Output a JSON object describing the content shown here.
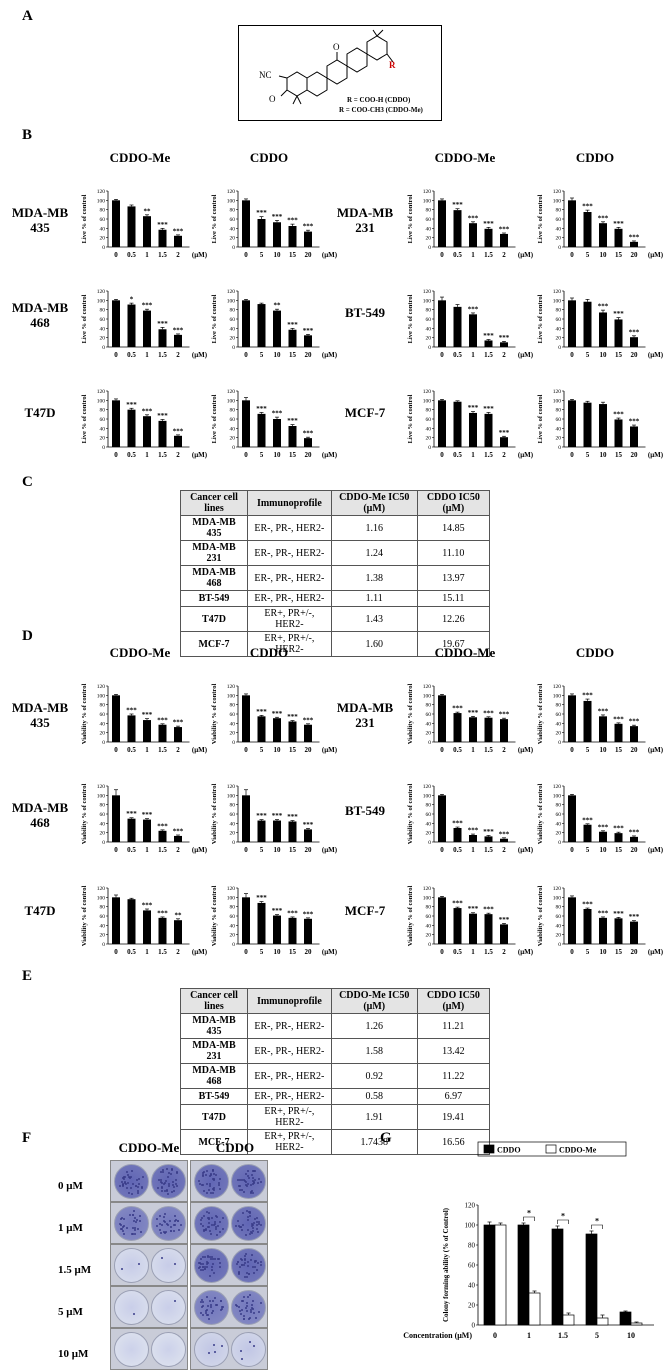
{
  "panels": {
    "A": "A",
    "B": "B",
    "C": "C",
    "D": "D",
    "E": "E",
    "F": "F",
    "G": "G"
  },
  "structure": {
    "r_group": "R",
    "line1": "R = COO-H (CDDO)",
    "line2": "R = COO-CH3 (CDDO-Me)",
    "labels": [
      "NC",
      "O",
      "O"
    ]
  },
  "panel_b": {
    "headers": [
      "CDDO-Me",
      "CDDO",
      "CDDO-Me",
      "CDDO"
    ],
    "ylabel": "Live % of control",
    "unit": "(μM)",
    "rows_left": [
      "MDA-MB 435",
      "MDA-MB 468",
      "T47D"
    ],
    "rows_right": [
      "MDA-MB 231",
      "BT-549",
      "MCF-7"
    ]
  },
  "panel_d": {
    "headers": [
      "CDDO-Me",
      "CDDO",
      "CDDO-Me",
      "CDDO"
    ],
    "ylabel": "Viability % of control",
    "unit": "(μM)",
    "rows_left": [
      "MDA-MB 435",
      "MDA-MB 468",
      "T47D"
    ],
    "rows_right": [
      "MDA-MB 231",
      "BT-549",
      "MCF-7"
    ]
  },
  "table_c": {
    "headers": [
      "Cancer  cell lines",
      "Immunoprofile",
      "CDDO-Me IC50 (μM)",
      "CDDO IC50 (μM)"
    ],
    "rows": [
      [
        "MDA-MB 435",
        "ER-, PR-, HER2-",
        "1.16",
        "14.85"
      ],
      [
        "MDA-MB 231",
        "ER-, PR-, HER2-",
        "1.24",
        "11.10"
      ],
      [
        "MDA-MB 468",
        "ER-, PR-, HER2-",
        "1.38",
        "13.97"
      ],
      [
        "BT-549",
        "ER-, PR-, HER2-",
        "1.11",
        "15.11"
      ],
      [
        "T47D",
        "ER+, PR+/-, HER2-",
        "1.43",
        "12.26"
      ],
      [
        "MCF-7",
        "ER+, PR+/-, HER2-",
        "1.60",
        "19.67"
      ]
    ]
  },
  "table_e": {
    "headers": [
      "Cancer  cell lines",
      "Immunoprofile",
      "CDDO-Me IC50 (μM)",
      "CDDO IC50 (μM)"
    ],
    "rows": [
      [
        "MDA-MB 435",
        "ER-, PR-, HER2-",
        "1.26",
        "11.21"
      ],
      [
        "MDA-MB 231",
        "ER-, PR-, HER2-",
        "1.58",
        "13.42"
      ],
      [
        "MDA-MB 468",
        "ER-, PR-, HER2-",
        "0.92",
        "11.22"
      ],
      [
        "BT-549",
        "ER-, PR-, HER2-",
        "0.58",
        "6.97"
      ],
      [
        "T47D",
        "ER+, PR+/-, HER2-",
        "1.91",
        "19.41"
      ],
      [
        "MCF-7",
        "ER+, PR+/-, HER2-",
        "1.7438",
        "16.56"
      ]
    ]
  },
  "panel_f": {
    "headers": [
      "CDDO-Me",
      "CDDO"
    ],
    "rows": [
      "0 μM",
      "1 μM",
      "1.5 μM",
      "5 μM",
      "10 μM"
    ],
    "density_me": [
      0.9,
      0.75,
      0.05,
      0.03,
      0.01
    ],
    "density_cddo": [
      0.9,
      0.9,
      0.9,
      0.75,
      0.1
    ]
  },
  "chart_data": [
    {
      "id": "B-435-Me",
      "type": "bar",
      "title": "CDDO-Me",
      "ylabel": "Live % of control",
      "ylim": [
        0,
        120
      ],
      "categories": [
        "0",
        "0.5",
        "1",
        "1.5",
        "2"
      ],
      "values": [
        100,
        87,
        66,
        37,
        24
      ],
      "errors": [
        2,
        3,
        3,
        3,
        2
      ],
      "stars": [
        "",
        "",
        "**",
        "***",
        "***"
      ]
    },
    {
      "id": "B-435-C",
      "type": "bar",
      "title": "CDDO",
      "ylabel": "Live % of control",
      "ylim": [
        0,
        120
      ],
      "categories": [
        "0",
        "5",
        "10",
        "15",
        "20"
      ],
      "values": [
        100,
        60,
        53,
        45,
        33
      ],
      "errors": [
        3,
        5,
        4,
        4,
        3
      ],
      "stars": [
        "",
        "***",
        "***",
        "***",
        "***"
      ]
    },
    {
      "id": "B-231-Me",
      "type": "bar",
      "title": "CDDO-Me",
      "ylabel": "Live % of control",
      "ylim": [
        0,
        120
      ],
      "categories": [
        "0",
        "0.5",
        "1",
        "1.5",
        "2"
      ],
      "values": [
        100,
        79,
        51,
        39,
        28
      ],
      "errors": [
        3,
        3,
        3,
        3,
        2
      ],
      "stars": [
        "",
        "***",
        "***",
        "***",
        "***"
      ]
    },
    {
      "id": "B-231-C",
      "type": "bar",
      "title": "CDDO",
      "ylabel": "Live % of control",
      "ylim": [
        0,
        120
      ],
      "categories": [
        "0",
        "5",
        "10",
        "15",
        "20"
      ],
      "values": [
        100,
        75,
        51,
        39,
        11
      ],
      "errors": [
        5,
        4,
        3,
        3,
        2
      ],
      "stars": [
        "",
        "***",
        "***",
        "***",
        "***"
      ]
    },
    {
      "id": "B-468-Me",
      "type": "bar",
      "title": "CDDO-Me",
      "ylabel": "Live % of control",
      "ylim": [
        0,
        120
      ],
      "categories": [
        "0",
        "0.5",
        "1",
        "1.5",
        "2"
      ],
      "values": [
        100,
        91,
        78,
        38,
        26
      ],
      "errors": [
        2,
        3,
        3,
        4,
        2
      ],
      "stars": [
        "",
        "*",
        "***",
        "***",
        "***"
      ]
    },
    {
      "id": "B-468-C",
      "type": "bar",
      "title": "CDDO",
      "ylabel": "Live % of control",
      "ylim": [
        0,
        120
      ],
      "categories": [
        "0",
        "5",
        "10",
        "15",
        "20"
      ],
      "values": [
        100,
        92,
        78,
        37,
        25
      ],
      "errors": [
        2,
        2,
        3,
        3,
        2
      ],
      "stars": [
        "",
        "",
        "**",
        "***",
        "***"
      ]
    },
    {
      "id": "B-549-Me",
      "type": "bar",
      "title": "CDDO-Me",
      "ylabel": "Live % of control",
      "ylim": [
        0,
        120
      ],
      "categories": [
        "0",
        "0.5",
        "1",
        "1.5",
        "2"
      ],
      "values": [
        100,
        86,
        70,
        14,
        10
      ],
      "errors": [
        7,
        5,
        3,
        2,
        2
      ],
      "stars": [
        "",
        "",
        "***",
        "***",
        "***"
      ]
    },
    {
      "id": "B-549-C",
      "type": "bar",
      "title": "CDDO",
      "ylabel": "Live % of control",
      "ylim": [
        0,
        120
      ],
      "categories": [
        "0",
        "5",
        "10",
        "15",
        "20"
      ],
      "values": [
        100,
        97,
        74,
        59,
        21
      ],
      "errors": [
        5,
        5,
        5,
        4,
        3
      ],
      "stars": [
        "",
        "",
        "***",
        "***",
        "***"
      ]
    },
    {
      "id": "B-T47-Me",
      "type": "bar",
      "title": "CDDO-Me",
      "ylabel": "Live % of control",
      "ylim": [
        0,
        120
      ],
      "categories": [
        "0",
        "0.5",
        "1",
        "1.5",
        "2"
      ],
      "values": [
        100,
        80,
        66,
        56,
        24
      ],
      "errors": [
        3,
        3,
        3,
        3,
        2
      ],
      "stars": [
        "",
        "***",
        "***",
        "***",
        "***"
      ]
    },
    {
      "id": "B-T47-C",
      "type": "bar",
      "title": "CDDO",
      "ylabel": "Live % of control",
      "ylim": [
        0,
        120
      ],
      "categories": [
        "0",
        "5",
        "10",
        "15",
        "20"
      ],
      "values": [
        100,
        71,
        60,
        45,
        19
      ],
      "errors": [
        6,
        3,
        4,
        3,
        2
      ],
      "stars": [
        "",
        "***",
        "***",
        "***",
        "***"
      ]
    },
    {
      "id": "B-MCF-Me",
      "type": "bar",
      "title": "CDDO-Me",
      "ylabel": "Live % of control",
      "ylim": [
        0,
        120
      ],
      "categories": [
        "0",
        "0.5",
        "1",
        "1.5",
        "2"
      ],
      "values": [
        100,
        97,
        73,
        71,
        21
      ],
      "errors": [
        2,
        2,
        3,
        3,
        2
      ],
      "stars": [
        "",
        "",
        "***",
        "***",
        "***"
      ]
    },
    {
      "id": "B-MCF-C",
      "type": "bar",
      "title": "CDDO",
      "ylabel": "Live % of control",
      "ylim": [
        0,
        120
      ],
      "categories": [
        "0",
        "5",
        "10",
        "15",
        "20"
      ],
      "values": [
        100,
        95,
        92,
        59,
        44
      ],
      "errors": [
        2,
        3,
        4,
        3,
        3
      ],
      "stars": [
        "",
        "",
        "",
        "***",
        "***"
      ]
    },
    {
      "id": "D-435-Me",
      "type": "bar",
      "title": "CDDO-Me",
      "ylabel": "Viability % of control",
      "ylim": [
        0,
        120
      ],
      "categories": [
        "0",
        "0.5",
        "1",
        "1.5",
        "2"
      ],
      "values": [
        100,
        57,
        47,
        37,
        32
      ],
      "errors": [
        2,
        3,
        3,
        2,
        2
      ],
      "stars": [
        "",
        "***",
        "***",
        "***",
        "***"
      ]
    },
    {
      "id": "D-435-C",
      "type": "bar",
      "title": "CDDO",
      "ylabel": "Viability % of control",
      "ylim": [
        0,
        120
      ],
      "categories": [
        "0",
        "5",
        "10",
        "15",
        "20"
      ],
      "values": [
        100,
        55,
        51,
        44,
        37
      ],
      "errors": [
        3,
        2,
        2,
        2,
        2
      ],
      "stars": [
        "",
        "***",
        "***",
        "***",
        "***"
      ]
    },
    {
      "id": "D-231-Me",
      "type": "bar",
      "title": "CDDO-Me",
      "ylabel": "Viability % of control",
      "ylim": [
        0,
        120
      ],
      "categories": [
        "0",
        "0.5",
        "1",
        "1.5",
        "2"
      ],
      "values": [
        100,
        62,
        53,
        52,
        49
      ],
      "errors": [
        2,
        2,
        2,
        2,
        2
      ],
      "stars": [
        "",
        "***",
        "***",
        "***",
        "***"
      ]
    },
    {
      "id": "D-231-C",
      "type": "bar",
      "title": "CDDO",
      "ylabel": "Viability % of control",
      "ylim": [
        0,
        120
      ],
      "categories": [
        "0",
        "5",
        "10",
        "15",
        "20"
      ],
      "values": [
        100,
        88,
        55,
        39,
        34
      ],
      "errors": [
        3,
        4,
        3,
        2,
        2
      ],
      "stars": [
        "",
        "***",
        "***",
        "***",
        "***"
      ]
    },
    {
      "id": "D-468-Me",
      "type": "bar",
      "title": "CDDO-Me",
      "ylabel": "Viability % of control",
      "ylim": [
        0,
        120
      ],
      "categories": [
        "0",
        "0.5",
        "1",
        "1.5",
        "2"
      ],
      "values": [
        100,
        50,
        48,
        24,
        13
      ],
      "errors": [
        12,
        2,
        2,
        2,
        2
      ],
      "stars": [
        "",
        "***",
        "***",
        "***",
        "***"
      ]
    },
    {
      "id": "D-468-C",
      "type": "bar",
      "title": "CDDO",
      "ylabel": "Viability % of control",
      "ylim": [
        0,
        120
      ],
      "categories": [
        "0",
        "5",
        "10",
        "15",
        "20"
      ],
      "values": [
        100,
        46,
        46,
        44,
        27
      ],
      "errors": [
        12,
        2,
        2,
        2,
        2
      ],
      "stars": [
        "",
        "***",
        "***",
        "***",
        "***"
      ]
    },
    {
      "id": "D-549-Me",
      "type": "bar",
      "title": "CDDO-Me",
      "ylabel": "Viability % of control",
      "ylim": [
        0,
        120
      ],
      "categories": [
        "0",
        "0.5",
        "1",
        "1.5",
        "2"
      ],
      "values": [
        100,
        30,
        15,
        12,
        7
      ],
      "errors": [
        2,
        2,
        2,
        2,
        2
      ],
      "stars": [
        "",
        "***",
        "***",
        "***",
        "***"
      ]
    },
    {
      "id": "D-549-C",
      "type": "bar",
      "title": "CDDO",
      "ylabel": "Viability % of control",
      "ylim": [
        0,
        120
      ],
      "categories": [
        "0",
        "5",
        "10",
        "15",
        "20"
      ],
      "values": [
        100,
        37,
        22,
        19,
        11
      ],
      "errors": [
        2,
        2,
        2,
        2,
        2
      ],
      "stars": [
        "",
        "***",
        "***",
        "***",
        "***"
      ]
    },
    {
      "id": "D-T47-Me",
      "type": "bar",
      "title": "CDDO-Me",
      "ylabel": "Viability % of control",
      "ylim": [
        0,
        120
      ],
      "categories": [
        "0",
        "0.5",
        "1",
        "1.5",
        "2"
      ],
      "values": [
        100,
        96,
        72,
        56,
        51
      ],
      "errors": [
        5,
        2,
        3,
        2,
        3
      ],
      "stars": [
        "",
        "",
        "***",
        "***",
        "**"
      ]
    },
    {
      "id": "D-T47-C",
      "type": "bar",
      "title": "CDDO",
      "ylabel": "Viability % of control",
      "ylim": [
        0,
        120
      ],
      "categories": [
        "0",
        "5",
        "10",
        "15",
        "20"
      ],
      "values": [
        100,
        88,
        61,
        56,
        54
      ],
      "errors": [
        8,
        3,
        2,
        2,
        2
      ],
      "stars": [
        "",
        "***",
        "***",
        "***",
        "***"
      ]
    },
    {
      "id": "D-MCF-Me",
      "type": "bar",
      "title": "CDDO-Me",
      "ylabel": "Viability % of control",
      "ylim": [
        0,
        120
      ],
      "categories": [
        "0",
        "0.5",
        "1",
        "1.5",
        "2"
      ],
      "values": [
        100,
        77,
        65,
        64,
        42
      ],
      "errors": [
        2,
        2,
        2,
        2,
        2
      ],
      "stars": [
        "",
        "***",
        "***",
        "***",
        "***"
      ]
    },
    {
      "id": "D-MCF-C",
      "type": "bar",
      "title": "CDDO",
      "ylabel": "Viability % of control",
      "ylim": [
        0,
        120
      ],
      "categories": [
        "0",
        "5",
        "10",
        "15",
        "20"
      ],
      "values": [
        100,
        75,
        56,
        55,
        48
      ],
      "errors": [
        3,
        2,
        2,
        2,
        2
      ],
      "stars": [
        "",
        "***",
        "***",
        "***",
        "***"
      ]
    },
    {
      "id": "G",
      "type": "bar",
      "title": "",
      "ylabel": "Colony forming ability (% of Control)",
      "xlabel": "Concentration (μM)",
      "ylim": [
        0,
        120
      ],
      "categories": [
        "0",
        "1",
        "1.5",
        "5",
        "10"
      ],
      "series": [
        {
          "name": "CDDO",
          "values": [
            100,
            100,
            96,
            91,
            13
          ],
          "errors": [
            3,
            2,
            3,
            3,
            1
          ]
        },
        {
          "name": "CDDO-Me",
          "values": [
            100,
            32,
            10,
            7,
            2
          ],
          "errors": [
            2,
            2,
            2,
            3,
            1
          ]
        }
      ],
      "stars": [
        "",
        "*",
        "*",
        "*",
        ""
      ]
    }
  ]
}
